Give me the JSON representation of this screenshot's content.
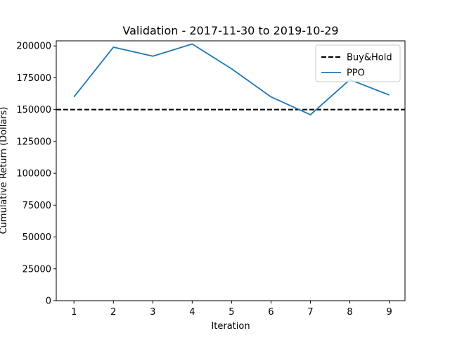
{
  "chart_data": {
    "type": "line",
    "title": "Validation - 2017-11-30 to 2019-10-29",
    "xlabel": "Iteration",
    "ylabel": "Cumulative Return (Dollars)",
    "x": [
      1,
      2,
      3,
      4,
      5,
      6,
      7,
      8,
      9
    ],
    "xlim": [
      0.55,
      9.4
    ],
    "ylim": [
      0,
      204000
    ],
    "x_ticks": [
      "1",
      "2",
      "3",
      "4",
      "5",
      "6",
      "7",
      "8",
      "9"
    ],
    "y_ticks": [
      {
        "value": 0,
        "label": "0"
      },
      {
        "value": 25000,
        "label": "25000"
      },
      {
        "value": 50000,
        "label": "50000"
      },
      {
        "value": 75000,
        "label": "75000"
      },
      {
        "value": 100000,
        "label": "100000"
      },
      {
        "value": 125000,
        "label": "125000"
      },
      {
        "value": 150000,
        "label": "150000"
      },
      {
        "value": 175000,
        "label": "175000"
      },
      {
        "value": 200000,
        "label": "200000"
      }
    ],
    "grid": false,
    "legend_position": "top-right",
    "series": [
      {
        "name": "Buy&Hold",
        "style": "dashed",
        "color": "#000000",
        "values": [
          150000,
          150000,
          150000,
          150000,
          150000,
          150000,
          150000,
          150000,
          150000
        ]
      },
      {
        "name": "PPO",
        "style": "solid",
        "color": "#1f77b4",
        "values": [
          160000,
          199000,
          192000,
          201500,
          182000,
          160000,
          146000,
          173500,
          161500
        ]
      }
    ]
  }
}
